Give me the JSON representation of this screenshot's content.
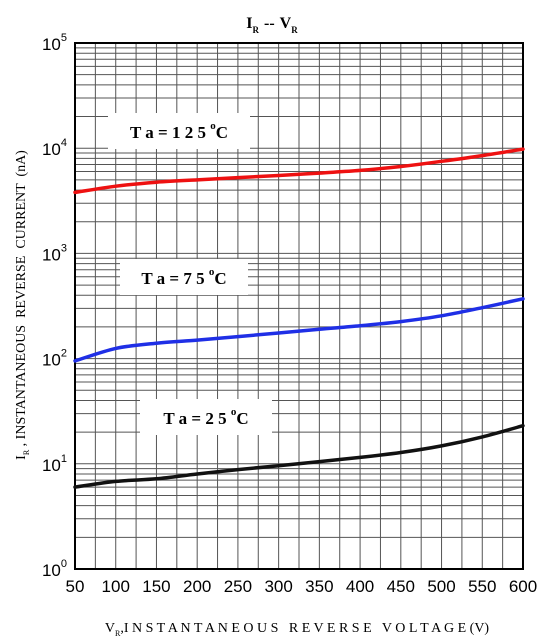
{
  "chart_data": {
    "type": "line",
    "title": {
      "main_1": "I",
      "sub_1": "R",
      "sep": "--",
      "main_2": "V",
      "sub_2": "R"
    },
    "xlabel": {
      "main": "V",
      "sub": "R",
      "rest": ",I N S T A N T A N E O U S   R E V E R S E   V O L T A G E (V)"
    },
    "ylabel": {
      "main": "I",
      "sub": "R",
      "rest": " , INSTANTANEOUS  REVERSE  CURRENT  (nA)"
    },
    "x_ticks": [
      50,
      100,
      150,
      200,
      250,
      300,
      350,
      400,
      450,
      500,
      550,
      600
    ],
    "xlim": [
      50,
      600
    ],
    "y_scale": "log",
    "ylim": [
      1,
      100000
    ],
    "y_ticks": [
      {
        "value": 1,
        "base": "10",
        "exp": "0"
      },
      {
        "value": 10,
        "base": "10",
        "exp": "1"
      },
      {
        "value": 100,
        "base": "10",
        "exp": "2"
      },
      {
        "value": 1000,
        "base": "10",
        "exp": "3"
      },
      {
        "value": 10000,
        "base": "10",
        "exp": "4"
      },
      {
        "value": 100000,
        "base": "10",
        "exp": "5"
      }
    ],
    "grid": true,
    "series": [
      {
        "name": "T a =  1 2 5 °C",
        "label_main": "T a =  1 2 5 ",
        "label_sup": "o",
        "label_end": "C",
        "color": "#ee1111",
        "x": [
          50,
          100,
          150,
          200,
          250,
          300,
          350,
          400,
          450,
          500,
          550,
          600
        ],
        "y": [
          3800,
          4350,
          4750,
          5000,
          5250,
          5500,
          5800,
          6150,
          6700,
          7500,
          8500,
          9800
        ]
      },
      {
        "name": "T a =  7 5 °C",
        "label_main": "T a =  7 5 ",
        "label_sup": "o",
        "label_end": "C",
        "color": "#1f2fe6",
        "x": [
          50,
          100,
          150,
          200,
          250,
          300,
          350,
          400,
          450,
          500,
          550,
          600
        ],
        "y": [
          95,
          125,
          140,
          150,
          162,
          175,
          190,
          205,
          225,
          255,
          305,
          370
        ]
      },
      {
        "name": "T a =  2 5 °C",
        "label_main": "T a =  2 5 ",
        "label_sup": "o",
        "label_end": "C",
        "color": "#111111",
        "x": [
          50,
          100,
          150,
          200,
          250,
          300,
          350,
          400,
          450,
          500,
          550,
          600
        ],
        "y": [
          6.0,
          6.8,
          7.2,
          8.0,
          8.8,
          9.6,
          10.5,
          11.5,
          12.8,
          14.8,
          18.0,
          23.0
        ]
      }
    ]
  }
}
